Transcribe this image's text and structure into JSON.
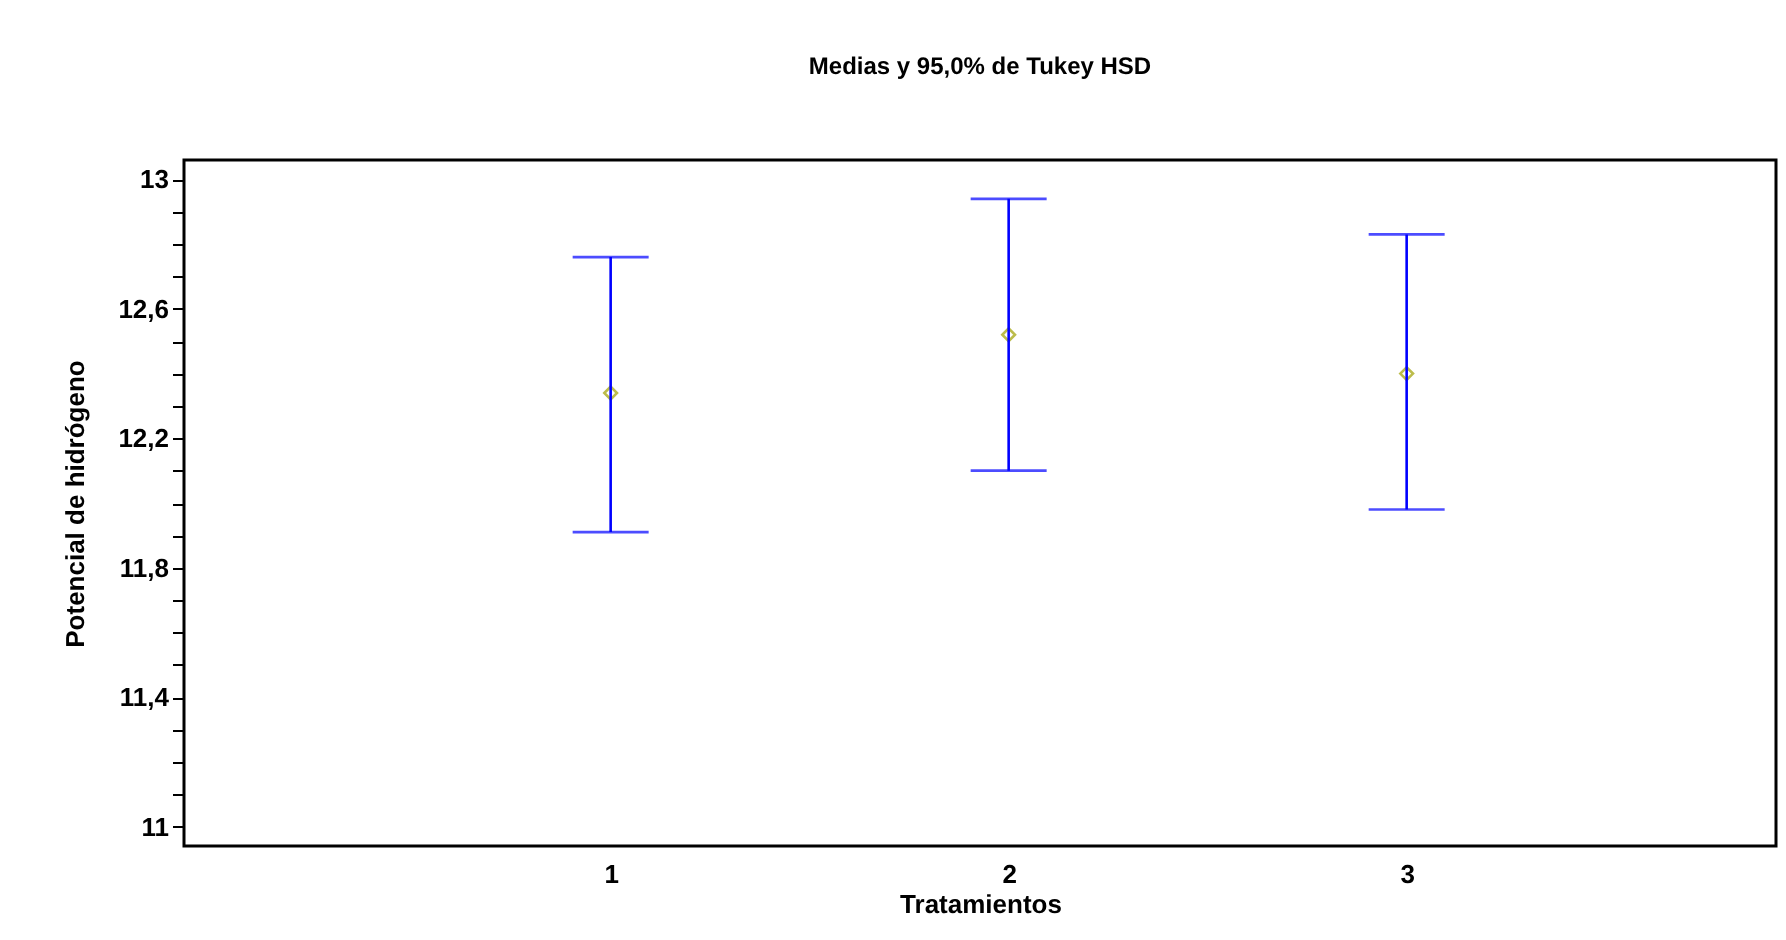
{
  "chart_data": {
    "type": "scatter",
    "title": "Medias y 95,0% de Tukey HSD",
    "xlabel": "Tratamientos",
    "ylabel": "Potencial de hidrógeno",
    "categories": [
      "1",
      "2",
      "3"
    ],
    "series": [
      {
        "color": "#a0a000",
        "values": [
          12.34,
          12.52,
          12.4
        ],
        "errors": [
          [
            11.91,
            12.76
          ],
          [
            12.1,
            12.94
          ],
          [
            11.98,
            12.83
          ]
        ]
      }
    ],
    "ylim": [
      10.94,
      13.06
    ],
    "yticks": [
      {
        "value": 11,
        "label": "11"
      },
      {
        "value": 11.1,
        "label": null
      },
      {
        "value": 11.2,
        "label": null
      },
      {
        "value": 11.3,
        "label": null
      },
      {
        "value": 11.4,
        "label": "11,4"
      },
      {
        "value": 11.5,
        "label": null
      },
      {
        "value": 11.6,
        "label": null
      },
      {
        "value": 11.7,
        "label": null
      },
      {
        "value": 11.8,
        "label": "11,8"
      },
      {
        "value": 11.9,
        "label": null
      },
      {
        "value": 12,
        "label": null
      },
      {
        "value": 12.1,
        "label": null
      },
      {
        "value": 12.2,
        "label": "12,2"
      },
      {
        "value": 12.3,
        "label": null
      },
      {
        "value": 12.4,
        "label": null
      },
      {
        "value": 12.5,
        "label": null
      },
      {
        "value": 12.6,
        "label": "12,6"
      },
      {
        "value": 12.7,
        "label": null
      },
      {
        "value": 12.8,
        "label": null
      },
      {
        "value": 12.9,
        "label": null
      },
      {
        "value": 13,
        "label": "13"
      }
    ],
    "marker": "diamond",
    "grid": false
  }
}
